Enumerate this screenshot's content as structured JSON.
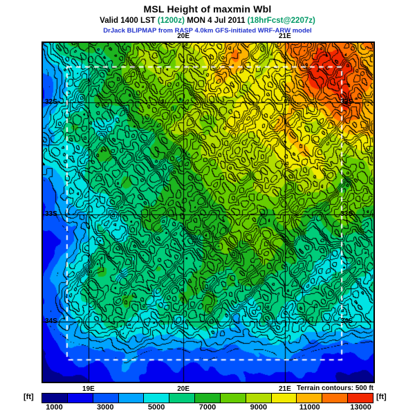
{
  "header": {
    "title": "MSL Height of maxmin Wbl",
    "valid": {
      "part1": "Valid 1400 LST ",
      "zulu": "(1200z) ",
      "part2": "MON 4 Jul 2011 ",
      "fcst": "(18hrFcst@2207z)"
    },
    "credit": "DrJack BLIPMAP from RASP 4.0km GFS-initiated WRF-ARW model"
  },
  "map": {
    "lon_labels": [
      "19E",
      "20E",
      "21E"
    ],
    "lat_labels": [
      "32S",
      "33S",
      "34S"
    ],
    "terrain_note": "Terrain contours: 500 ft"
  },
  "colorbar": {
    "unit_left": "[ft]",
    "unit_right": "[ft]",
    "ticks": [
      1000,
      3000,
      5000,
      7000,
      9000,
      11000,
      13000
    ],
    "min": 500,
    "max": 13500,
    "colors": [
      "#00008c",
      "#0000f0",
      "#0054ff",
      "#00a4ff",
      "#00e4e4",
      "#00cc7a",
      "#1db520",
      "#66cc00",
      "#b2dc00",
      "#f2ea00",
      "#ffb400",
      "#ff7000",
      "#f22800"
    ]
  },
  "colors": {
    "parenthetical": "#009966",
    "credit": "#2233cc",
    "grid_line": "#000000",
    "domain_box": "#ffffff"
  },
  "chart_data": {
    "type": "heatmap",
    "title": "MSL Height of maxmin Wbl",
    "units": "ft",
    "scale_min": 500,
    "scale_band": 1000,
    "lon_ticks": [
      "19E",
      "20E",
      "21E"
    ],
    "lat_ticks": [
      "32S",
      "33S",
      "34S"
    ],
    "lon_fracs": [
      0.138,
      0.425,
      0.732
    ],
    "lat_fracs": [
      0.176,
      0.506,
      0.822
    ],
    "domain_box_frac": {
      "x0": 0.073,
      "y0": 0.071,
      "x1": 0.904,
      "y1": 0.935
    },
    "terrain_contour_interval_ft": 500,
    "values": [
      [
        4000,
        6500,
        6500,
        7500,
        8500,
        9000,
        10500,
        11000,
        9000,
        11500,
        12800,
        11500,
        12000
      ],
      [
        3000,
        5000,
        6500,
        7000,
        8500,
        9000,
        9500,
        10500,
        9500,
        11000,
        12800,
        13000,
        11500
      ],
      [
        2500,
        5500,
        7000,
        7000,
        8000,
        7500,
        9000,
        9500,
        10500,
        11000,
        11500,
        12500,
        11000
      ],
      [
        4500,
        6000,
        5000,
        6500,
        7000,
        8500,
        9000,
        10000,
        9500,
        10500,
        9500,
        11000,
        10500
      ],
      [
        5000,
        4500,
        6000,
        5500,
        7000,
        7000,
        8500,
        9000,
        9000,
        9500,
        10000,
        9000,
        9500
      ],
      [
        3000,
        5000,
        6000,
        6500,
        5500,
        7000,
        7500,
        8500,
        9000,
        8500,
        9000,
        7500,
        8000
      ],
      [
        2500,
        4500,
        5000,
        6000,
        6500,
        7000,
        7000,
        8000,
        7500,
        8500,
        7000,
        7500,
        7000
      ],
      [
        1800,
        3000,
        5500,
        5000,
        6500,
        6000,
        7000,
        7500,
        8000,
        7000,
        5500,
        6500,
        6000
      ],
      [
        1800,
        4500,
        6500,
        5500,
        6000,
        6500,
        7000,
        6500,
        7000,
        6500,
        5000,
        5500,
        6000
      ],
      [
        2500,
        5000,
        6000,
        6500,
        5500,
        6000,
        6500,
        6000,
        6500,
        5500,
        6000,
        5500,
        5000
      ],
      [
        3000,
        4500,
        5000,
        6000,
        5500,
        5000,
        5500,
        5000,
        5500,
        5000,
        5500,
        5000,
        4500
      ],
      [
        1200,
        2500,
        3000,
        3800,
        3000,
        3000,
        3800,
        3000,
        3000,
        3800,
        3000,
        2500,
        2500
      ],
      [
        1000,
        1200,
        1800,
        2500,
        1800,
        2500,
        1800,
        1800,
        2500,
        1800,
        1800,
        1200,
        1800
      ]
    ]
  }
}
